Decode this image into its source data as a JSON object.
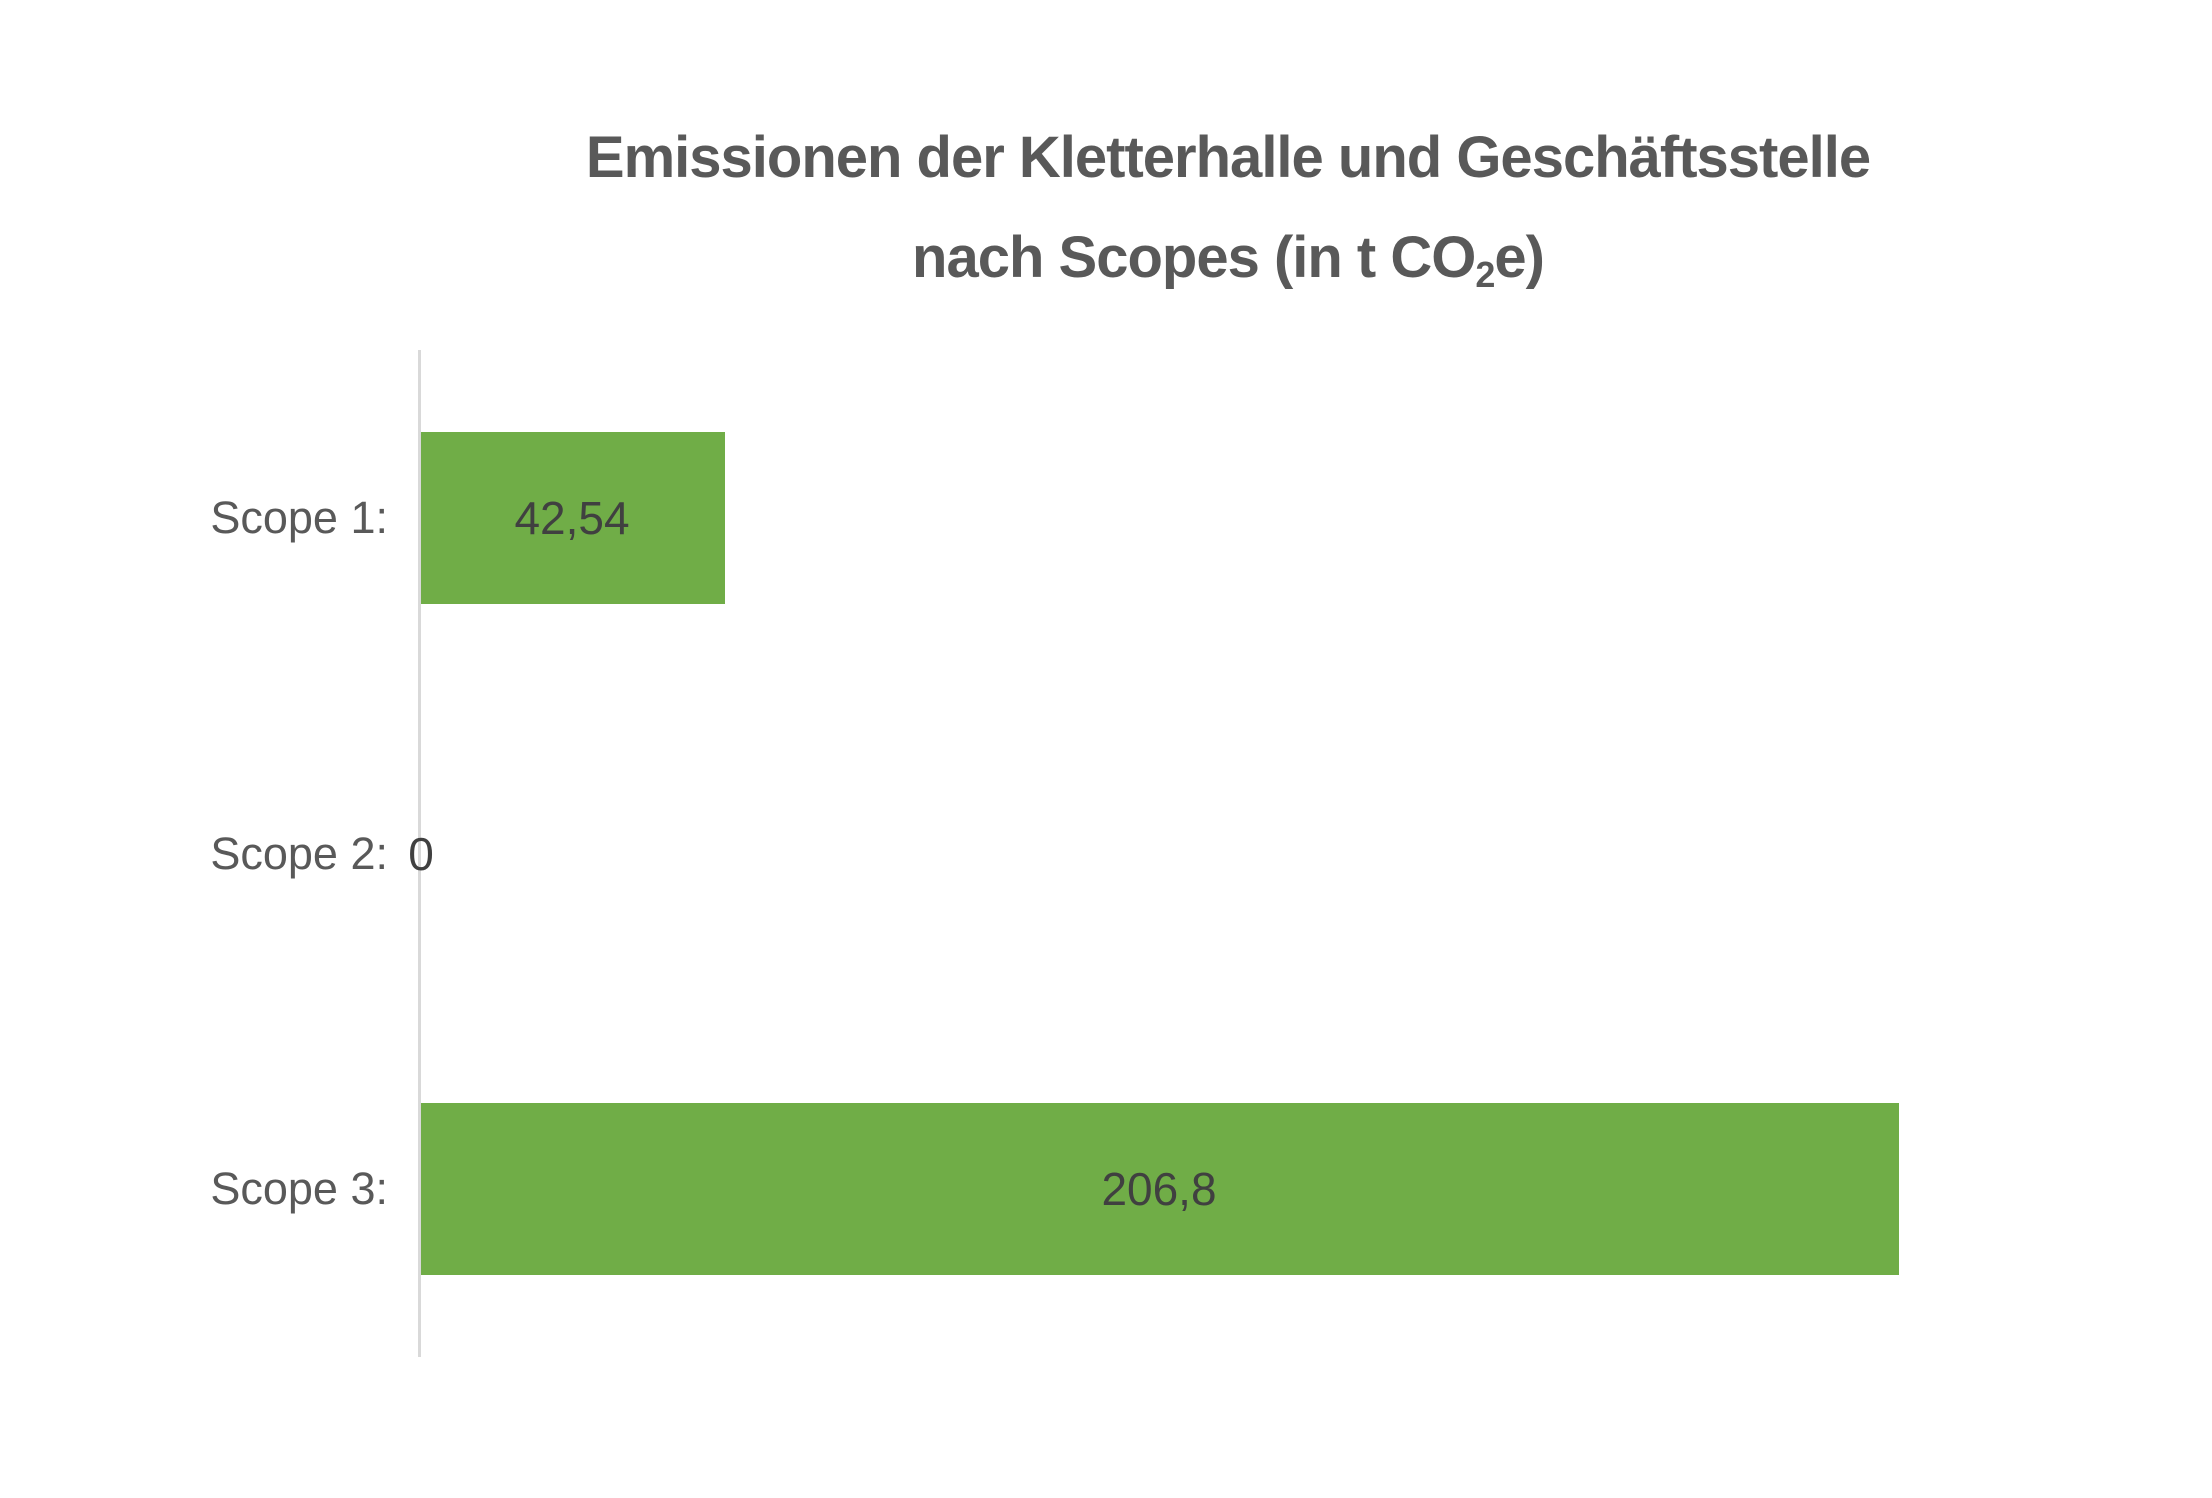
{
  "title": {
    "line1": "Emissionen der Kletterhalle und Geschäftsstelle",
    "line2_prefix": "nach Scopes (in t CO",
    "line2_sub": "2",
    "line2_suffix": "e)"
  },
  "chart_data": {
    "type": "bar",
    "orientation": "horizontal",
    "title": "Emissionen der Kletterhalle und Geschäftsstelle nach Scopes (in t CO2e)",
    "categories": [
      "Scope 1:",
      "Scope 2:",
      "Scope 3:"
    ],
    "values": [
      42.54,
      0,
      206.8
    ],
    "value_labels": [
      "42,54",
      "0",
      "206,8"
    ],
    "xlabel": "",
    "ylabel": "",
    "xlim": [
      0,
      250
    ],
    "grid": false,
    "legend": false,
    "data_labels_position": "inside-center",
    "colors": {
      "bar": "#70AD47",
      "title_text": "#595959",
      "category_text": "#595959",
      "value_text": "#404040",
      "axis_line": "#D9D9D9",
      "background": "#FFFFFF"
    }
  }
}
